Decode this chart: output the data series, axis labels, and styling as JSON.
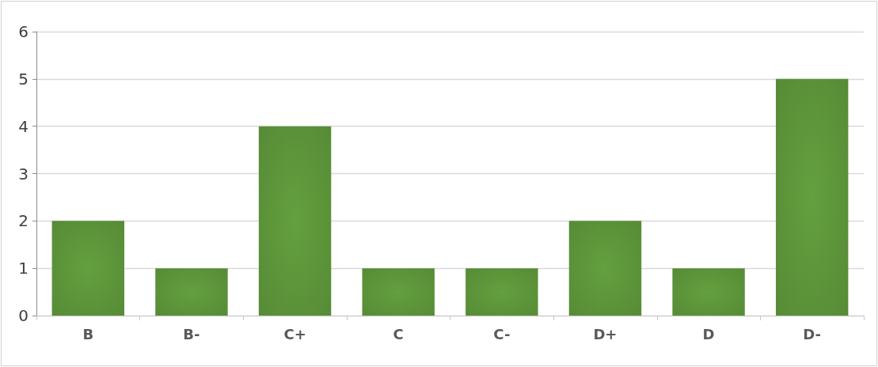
{
  "chart_data": {
    "type": "bar",
    "categories": [
      "B",
      "B-",
      "C+",
      "C",
      "C-",
      "D+",
      "D",
      "D-"
    ],
    "values": [
      2,
      1,
      4,
      1,
      1,
      2,
      1,
      5
    ],
    "color": "#578b36",
    "ylim": [
      0,
      6
    ],
    "yticks": [
      0,
      1,
      2,
      3,
      4,
      5,
      6
    ],
    "grid": "y"
  }
}
